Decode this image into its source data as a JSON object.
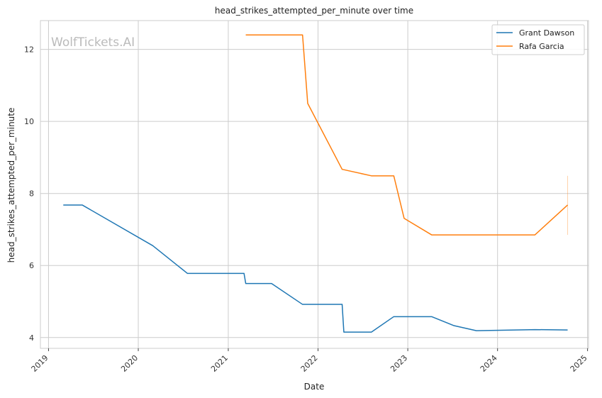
{
  "chart_data": {
    "type": "line",
    "title": "head_strikes_attempted_per_minute over time",
    "xlabel": "Date",
    "ylabel": "head_strikes_attempted_per_minute",
    "watermark": "WolfTickets.AI",
    "xlim": [
      "2018-11-29",
      "2025-01-05"
    ],
    "ylim": [
      3.7,
      12.8
    ],
    "x_ticks": [
      "2019",
      "2020",
      "2021",
      "2022",
      "2023",
      "2024",
      "2025"
    ],
    "y_ticks": [
      4,
      6,
      8,
      10,
      12
    ],
    "grid": true,
    "legend_position": "top-right",
    "series": [
      {
        "name": "Grant Dawson",
        "color": "#1f77b4",
        "points": [
          [
            "2019-03-02",
            7.68
          ],
          [
            "2019-05-18",
            7.68
          ],
          [
            "2020-02-29",
            6.55
          ],
          [
            "2020-07-19",
            5.78
          ],
          [
            "2021-03-06",
            5.78
          ],
          [
            "2021-03-13",
            5.5
          ],
          [
            "2021-06-26",
            5.5
          ],
          [
            "2021-10-30",
            4.92
          ],
          [
            "2022-04-09",
            4.92
          ],
          [
            "2022-04-16",
            4.15
          ],
          [
            "2022-08-06",
            4.15
          ],
          [
            "2022-11-05",
            4.58
          ],
          [
            "2023-04-08",
            4.58
          ],
          [
            "2023-07-08",
            4.33
          ],
          [
            "2023-10-07",
            4.19
          ],
          [
            "2024-06-01",
            4.22
          ],
          [
            "2024-10-12",
            4.21
          ]
        ]
      },
      {
        "name": "Rafa Garcia",
        "color": "#ff7f0e",
        "points": [
          [
            "2021-03-13",
            12.4
          ],
          [
            "2021-10-30",
            12.4
          ],
          [
            "2021-11-20",
            10.5
          ],
          [
            "2022-04-09",
            8.67
          ],
          [
            "2022-04-16",
            8.66
          ],
          [
            "2022-08-06",
            8.49
          ],
          [
            "2022-11-05",
            8.49
          ],
          [
            "2022-12-17",
            7.31
          ],
          [
            "2023-04-08",
            6.85
          ],
          [
            "2024-06-01",
            6.85
          ],
          [
            "2024-10-12",
            7.68
          ]
        ]
      }
    ],
    "error_bars": [
      {
        "series": "Rafa Garcia",
        "x": "2024-10-12",
        "low": 6.85,
        "high": 8.49
      }
    ]
  }
}
